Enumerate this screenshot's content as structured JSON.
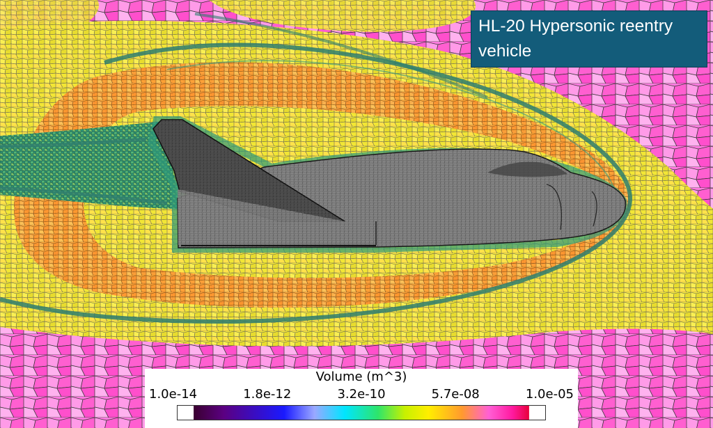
{
  "title": "HL-20 Hypersonic reentry vehicle",
  "legend": {
    "title": "Volume (m^3)",
    "ticks": [
      "1.0e-14",
      "1.8e-12",
      "3.2e-10",
      "5.7e-08",
      "1.0e-05"
    ],
    "colormap": [
      "#3a0030",
      "#5b0082",
      "#1a1aff",
      "#9aa8ff",
      "#00e5ff",
      "#2ee56a",
      "#c8f000",
      "#ffee00",
      "#ff9a2e",
      "#ff5fd5",
      "#ff1aa0",
      "#e8003c"
    ]
  },
  "colors": {
    "title_background": "#135c7a",
    "vehicle_gray": "#6e6e6e",
    "far_field": "#ff66dd",
    "mid_field": "#f3e63a",
    "shock_layer": "#ff9d33",
    "wake": "#2f9a7a",
    "shock_line": "#2f7e6e"
  }
}
